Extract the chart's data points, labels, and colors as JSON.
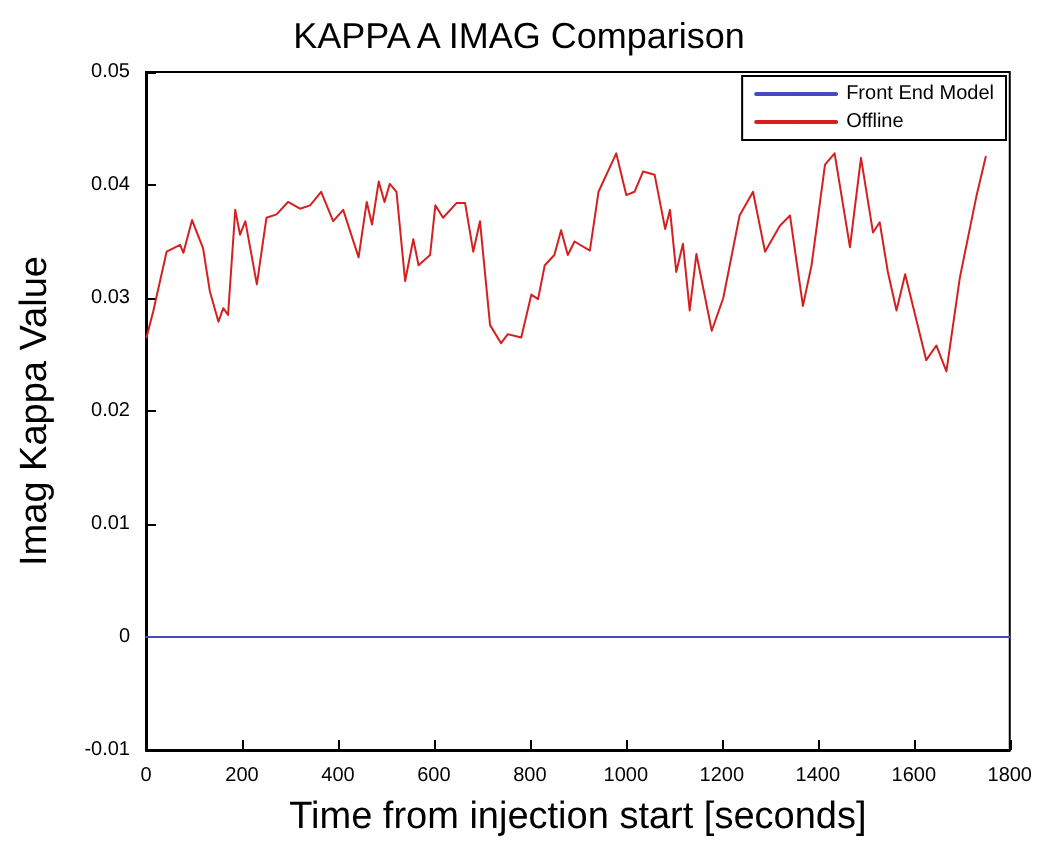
{
  "chart_data": {
    "type": "line",
    "title": "KAPPA A IMAG Comparison",
    "xlabel": "Time from injection start [seconds]",
    "ylabel": "Imag Kappa Value",
    "xlim": [
      0,
      1800
    ],
    "xticks": [
      0,
      200,
      400,
      600,
      800,
      1000,
      1200,
      1400,
      1600,
      1800
    ],
    "ylim": [
      -0.01,
      0.05
    ],
    "yticks": [
      -0.01,
      0,
      0.01,
      0.02,
      0.03,
      0.04,
      0.05
    ],
    "grid": false,
    "legend": "top right",
    "marker": "none",
    "line_style": "solid",
    "series": [
      {
        "name": "Front End Model",
        "color": "#4848c0",
        "x": [
          0,
          1800
        ],
        "values": [
          0,
          0
        ]
      },
      {
        "name": "Offline",
        "color": "#d42020",
        "x": [
          1,
          15,
          43,
          71,
          78,
          96,
          119,
          133,
          151,
          161,
          171,
          186,
          196,
          207,
          231,
          251,
          272,
          296,
          321,
          342,
          365,
          390,
          411,
          443,
          460,
          471,
          485,
          497,
          508,
          522,
          540,
          557,
          568,
          592,
          603,
          619,
          647,
          665,
          682,
          696,
          717,
          740,
          754,
          782,
          803,
          817,
          831,
          851,
          865,
          879,
          893,
          925,
          943,
          980,
          1001,
          1018,
          1036,
          1060,
          1082,
          1092,
          1105,
          1119,
          1133,
          1147,
          1179,
          1203,
          1237,
          1265,
          1290,
          1321,
          1342,
          1369,
          1387,
          1415,
          1435,
          1467,
          1490,
          1515,
          1529,
          1546,
          1564,
          1582,
          1626,
          1647,
          1668,
          1696,
          1731,
          1750
        ],
        "values": [
          0.0265,
          0.0288,
          0.0341,
          0.0347,
          0.034,
          0.0369,
          0.0344,
          0.0306,
          0.0279,
          0.0291,
          0.0285,
          0.0378,
          0.0356,
          0.0368,
          0.0312,
          0.0371,
          0.0374,
          0.0385,
          0.0379,
          0.0382,
          0.0394,
          0.0368,
          0.0378,
          0.0336,
          0.0385,
          0.0365,
          0.0403,
          0.0385,
          0.0401,
          0.0394,
          0.0315,
          0.0352,
          0.0329,
          0.0338,
          0.0382,
          0.0371,
          0.0384,
          0.0384,
          0.0341,
          0.0368,
          0.0276,
          0.026,
          0.0268,
          0.0265,
          0.0303,
          0.0299,
          0.0329,
          0.0338,
          0.036,
          0.0338,
          0.035,
          0.0342,
          0.0394,
          0.0428,
          0.0391,
          0.0394,
          0.0412,
          0.0409,
          0.0361,
          0.0378,
          0.0323,
          0.0348,
          0.0289,
          0.0339,
          0.0271,
          0.03,
          0.0373,
          0.0394,
          0.0341,
          0.0364,
          0.0373,
          0.0293,
          0.0329,
          0.0418,
          0.0428,
          0.0345,
          0.0424,
          0.0358,
          0.0367,
          0.0323,
          0.0289,
          0.0321,
          0.0245,
          0.0258,
          0.0235,
          0.0318,
          0.0391,
          0.0425
        ]
      }
    ]
  }
}
